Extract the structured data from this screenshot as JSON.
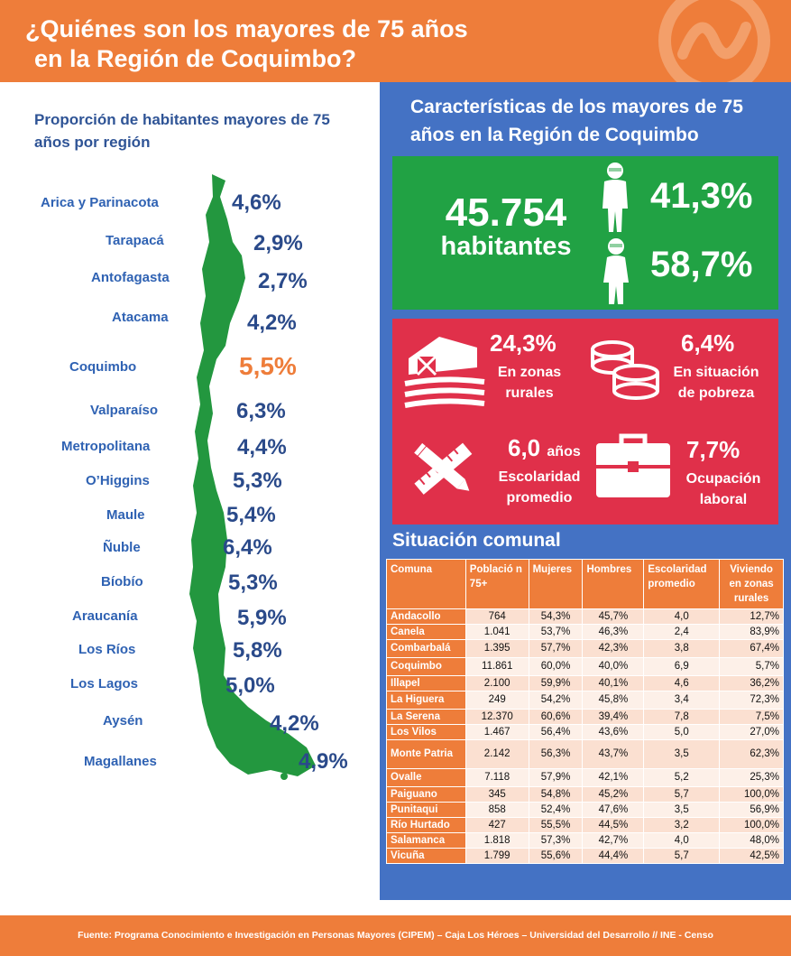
{
  "header": {
    "title_line1": "¿Quiénes son los mayores de 75 años",
    "title_line2": "en la Región de Coquimbo?"
  },
  "left": {
    "title": "Proporción de habitantes mayores de 75 años por región",
    "regions": [
      {
        "name": "Arica y Parinacota",
        "value": "4,6%"
      },
      {
        "name": "Tarapacá",
        "value": "2,9%"
      },
      {
        "name": "Antofagasta",
        "value": "2,7%"
      },
      {
        "name": "Atacama",
        "value": "4,2%"
      },
      {
        "name": "Coquimbo",
        "value": "5,5%"
      },
      {
        "name": "Valparaíso",
        "value": "6,3%"
      },
      {
        "name": "Metropolitana",
        "value": "4,4%"
      },
      {
        "name": "O’Higgins",
        "value": "5,3%"
      },
      {
        "name": "Maule",
        "value": "5,4%"
      },
      {
        "name": "Ñuble",
        "value": "6,4%"
      },
      {
        "name": "Bíobío",
        "value": "5,3%"
      },
      {
        "name": "Araucanía",
        "value": "5,9%"
      },
      {
        "name": "Los Ríos",
        "value": "5,8%"
      },
      {
        "name": "Los Lagos",
        "value": "5,0%"
      },
      {
        "name": "Aysén",
        "value": "4,2%"
      },
      {
        "name": "Magallanes",
        "value": "4,9%"
      }
    ]
  },
  "right": {
    "title": "Características de los mayores de 75 años en la Región de Coquimbo",
    "population": {
      "number": "45.754",
      "label": "habitantes"
    },
    "men_pct": "41,3%",
    "women_pct": "58,7%",
    "stats": {
      "rural": {
        "value": "24,3%",
        "label1": "En zonas",
        "label2": "rurales"
      },
      "poverty": {
        "value": "6,4%",
        "label1": "En situación",
        "label2": "de pobreza"
      },
      "school": {
        "value": "6,0",
        "unit": "años",
        "label1": "Escolaridad",
        "label2": "promedio"
      },
      "work": {
        "value": "7,7%",
        "label1": "Ocupación",
        "label2": "laboral"
      }
    },
    "table_title": "Situación comunal",
    "table": {
      "headers": [
        "Comuna",
        "Població n 75+",
        "Mujeres",
        "Hombres",
        "Escolaridad promedio",
        "Viviendo en zonas rurales"
      ],
      "rows": [
        [
          "Andacollo",
          "764",
          "54,3%",
          "45,7%",
          "4,0",
          "12,7%"
        ],
        [
          "Canela",
          "1.041",
          "53,7%",
          "46,3%",
          "2,4",
          "83,9%"
        ],
        [
          "Combarbalá",
          "1.395",
          "57,7%",
          "42,3%",
          "3,8",
          "67,4%"
        ],
        [
          "Coquimbo",
          "11.861",
          "60,0%",
          "40,0%",
          "6,9",
          "5,7%"
        ],
        [
          "Illapel",
          "2.100",
          "59,9%",
          "40,1%",
          "4,6",
          "36,2%"
        ],
        [
          "La Higuera",
          "249",
          "54,2%",
          "45,8%",
          "3,4",
          "72,3%"
        ],
        [
          "La Serena",
          "12.370",
          "60,6%",
          "39,4%",
          "7,8",
          "7,5%"
        ],
        [
          "Los Vilos",
          "1.467",
          "56,4%",
          "43,6%",
          "5,0",
          "27,0%"
        ],
        [
          "Monte Patria",
          "2.142",
          "56,3%",
          "43,7%",
          "3,5",
          "62,3%"
        ],
        [
          "Ovalle",
          "7.118",
          "57,9%",
          "42,1%",
          "5,2",
          "25,3%"
        ],
        [
          "Paiguano",
          "345",
          "54,8%",
          "45,2%",
          "5,7",
          "100,0%"
        ],
        [
          "Punitaqui",
          "858",
          "52,4%",
          "47,6%",
          "3,5",
          "56,9%"
        ],
        [
          "Río Hurtado",
          "427",
          "55,5%",
          "44,5%",
          "3,2",
          "100,0%"
        ],
        [
          "Salamanca",
          "1.818",
          "57,3%",
          "42,7%",
          "4,0",
          "48,0%"
        ],
        [
          "Vicuña",
          "1.799",
          "55,6%",
          "44,4%",
          "5,7",
          "42,5%"
        ]
      ]
    }
  },
  "footer": {
    "text": "Fuente: Programa Conocimiento e Investigación en Personas Mayores (CIPEM) – Caja Los Héroes – Universidad del Desarrollo // INE - Censo"
  },
  "colors": {
    "orange": "#ee7d3a",
    "blue_panel": "#4472c4",
    "green": "#21a244",
    "red": "#e0304a",
    "text_blue": "#2f5496"
  },
  "icons": [
    "hands-icon",
    "man-icon",
    "woman-icon",
    "barn-icon",
    "coins-icon",
    "pencil-ruler-icon",
    "briefcase-icon",
    "chile-map-icon"
  ]
}
